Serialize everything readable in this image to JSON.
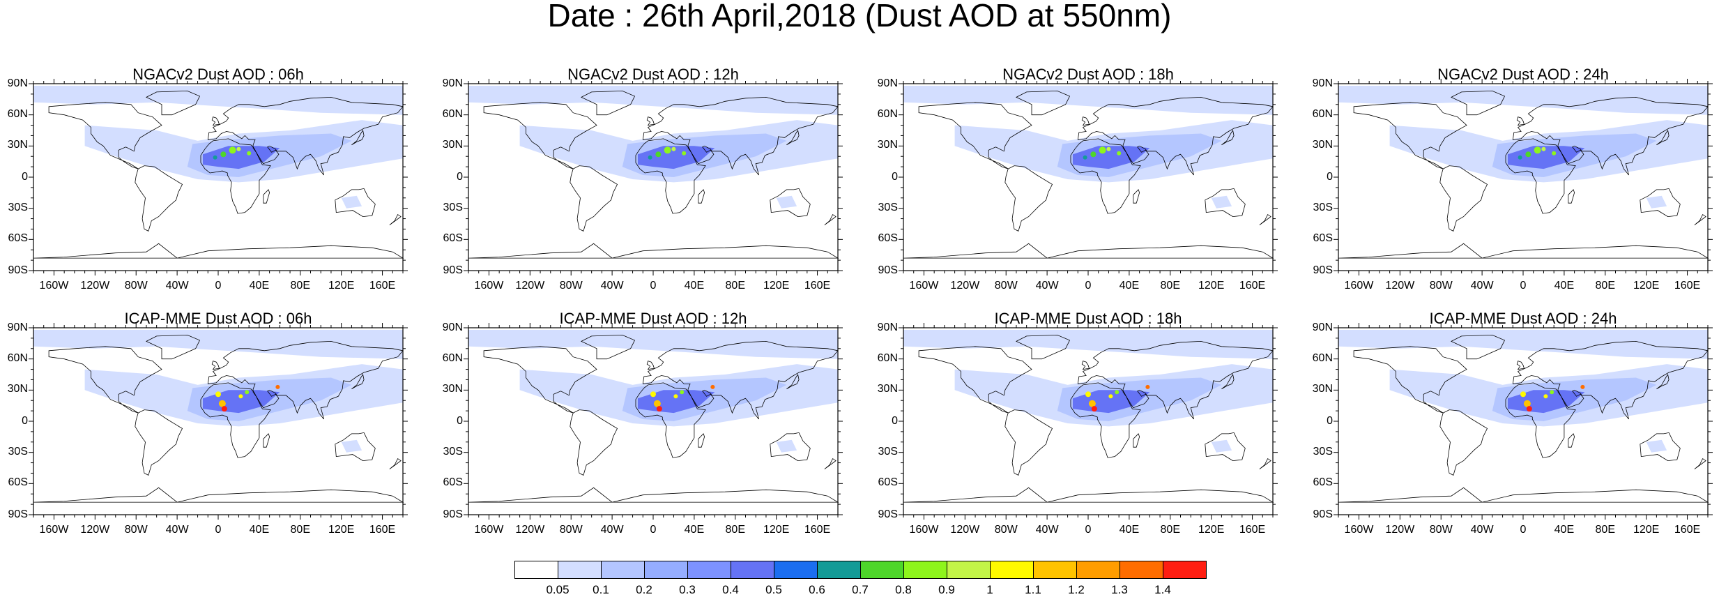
{
  "title": "Date : 26th April,2018 (Dust AOD at 550nm)",
  "lat_labels": [
    "90N",
    "60N",
    "30N",
    "0",
    "30S",
    "60S",
    "90S"
  ],
  "lon_labels": [
    "160W",
    "120W",
    "80W",
    "40W",
    "0",
    "40E",
    "80E",
    "120E",
    "160E"
  ],
  "panels": [
    {
      "title": "NGACv2 Dust AOD : 06h",
      "model": "NGACv2",
      "hour": "06h"
    },
    {
      "title": "NGACv2 Dust AOD : 12h",
      "model": "NGACv2",
      "hour": "12h"
    },
    {
      "title": "NGACv2 Dust AOD : 18h",
      "model": "NGACv2",
      "hour": "18h"
    },
    {
      "title": "NGACv2 Dust AOD : 24h",
      "model": "NGACv2",
      "hour": "24h"
    },
    {
      "title": "ICAP-MME Dust AOD : 06h",
      "model": "ICAP-MME",
      "hour": "06h"
    },
    {
      "title": "ICAP-MME Dust AOD : 12h",
      "model": "ICAP-MME",
      "hour": "12h"
    },
    {
      "title": "ICAP-MME Dust AOD : 18h",
      "model": "ICAP-MME",
      "hour": "18h"
    },
    {
      "title": "ICAP-MME Dust AOD : 24h",
      "model": "ICAP-MME",
      "hour": "24h"
    }
  ],
  "colorbar": {
    "levels": [
      "0.05",
      "0.1",
      "0.2",
      "0.3",
      "0.4",
      "0.5",
      "0.6",
      "0.7",
      "0.8",
      "0.9",
      "1",
      "1.1",
      "1.2",
      "1.3",
      "1.4"
    ],
    "colors": [
      "#ffffff",
      "#d3deff",
      "#b4c6ff",
      "#95adff",
      "#7d92ff",
      "#6573f5",
      "#1b6ef0",
      "#139b97",
      "#4ed62a",
      "#8ef51c",
      "#c3f548",
      "#fffa00",
      "#ffc300",
      "#ff9d00",
      "#ff6d00",
      "#ff1e12"
    ]
  },
  "colors": {
    "ocean": "#ffffff",
    "coast": "#000000",
    "dust_light": "#d3deff",
    "dust_mid": "#b4c6ff",
    "dust_high": "#6573f5"
  }
}
